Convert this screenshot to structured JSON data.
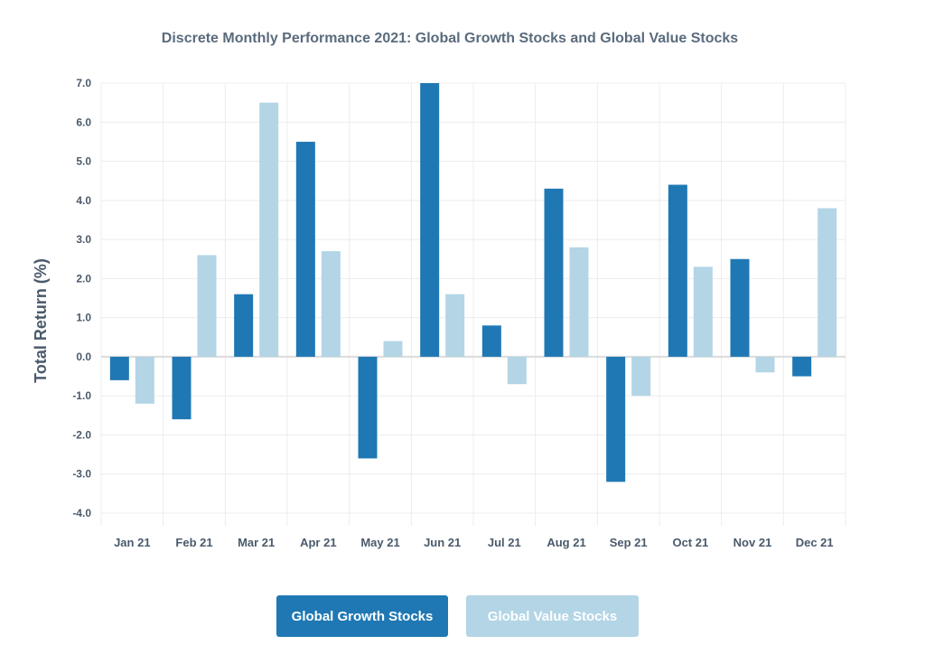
{
  "chart_data": {
    "type": "bar",
    "title": "Discrete Monthly Performance 2021: Global Growth Stocks and Global Value Stocks",
    "ylabel": "Total Return (%)",
    "xlabel": "",
    "categories": [
      "Jan 21",
      "Feb 21",
      "Mar 21",
      "Apr 21",
      "May 21",
      "Jun 21",
      "Jul 21",
      "Aug 21",
      "Sep 21",
      "Oct 21",
      "Nov 21",
      "Dec 21"
    ],
    "series": [
      {
        "name": "Global Growth Stocks",
        "color": "#1f78b4",
        "values": [
          -0.6,
          -1.6,
          1.6,
          5.5,
          -2.6,
          7.0,
          0.8,
          4.3,
          -3.2,
          4.4,
          2.5,
          -0.5
        ]
      },
      {
        "name": "Global Value Stocks",
        "color": "#b3d5e6",
        "values": [
          -1.2,
          2.6,
          6.5,
          2.7,
          0.4,
          1.6,
          -0.7,
          2.8,
          -1.0,
          2.3,
          -0.4,
          3.8
        ]
      }
    ],
    "ylim": [
      -4.0,
      7.0
    ],
    "yticks": [
      "7.0",
      "6.0",
      "5.0",
      "4.0",
      "3.0",
      "2.0",
      "1.0",
      "0.0",
      "-1.0",
      "-2.0",
      "-3.0",
      "-4.0"
    ],
    "grid": true,
    "legend_position": "bottom-center"
  },
  "legend": {
    "growth_label": "Global Growth Stocks",
    "value_label": "Global Value Stocks"
  },
  "colors": {
    "title": "#5a6b7d",
    "axis_text": "#4a5a6b",
    "grid": "#ececec",
    "zero_line": "#dcdcdc"
  }
}
